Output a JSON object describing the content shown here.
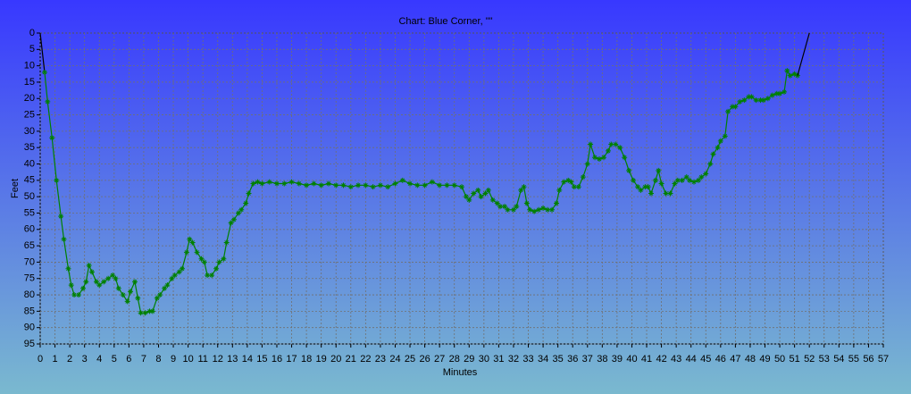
{
  "chart_data": {
    "type": "line",
    "title": "Chart: Blue Corner, \"\"",
    "x_label": "Minutes",
    "y_label": "Feet",
    "xlim": [
      0,
      57
    ],
    "ylim": [
      95,
      0
    ],
    "xticks": [
      0,
      1,
      2,
      3,
      4,
      5,
      6,
      7,
      8,
      9,
      10,
      11,
      12,
      13,
      14,
      15,
      16,
      17,
      18,
      19,
      20,
      21,
      22,
      23,
      24,
      25,
      26,
      27,
      28,
      29,
      30,
      31,
      32,
      33,
      34,
      35,
      36,
      37,
      38,
      39,
      40,
      41,
      42,
      43,
      44,
      45,
      46,
      47,
      48,
      49,
      50,
      51,
      52,
      53,
      54,
      55,
      56,
      57
    ],
    "yticks": [
      0,
      5,
      10,
      15,
      20,
      25,
      30,
      35,
      40,
      45,
      50,
      55,
      60,
      65,
      70,
      75,
      80,
      85,
      90,
      95
    ],
    "grid": true,
    "series": [
      {
        "color": "#000000",
        "markers": false,
        "x": [
          0,
          0.3
        ],
        "values": [
          0,
          12
        ]
      },
      {
        "color": "#008000",
        "markers": true,
        "x": [
          0.3,
          0.5,
          0.8,
          1.1,
          1.4,
          1.6,
          1.9,
          2.1,
          2.3,
          2.6,
          2.9,
          3.1,
          3.3,
          3.5,
          3.8,
          4.0,
          4.3,
          4.6,
          4.9,
          5.1,
          5.3,
          5.6,
          5.9,
          6.1,
          6.4,
          6.6,
          6.8,
          7.1,
          7.4,
          7.6,
          7.9,
          8.1,
          8.4,
          8.6,
          8.9,
          9.1,
          9.4,
          9.6,
          9.9,
          10.1,
          10.3,
          10.6,
          10.9,
          11.1,
          11.3,
          11.6,
          11.9,
          12.1,
          12.4,
          12.6,
          12.9,
          13.1,
          13.4,
          13.6,
          13.9,
          14.1,
          14.4,
          14.7,
          15,
          15.5,
          16,
          16.5,
          17,
          17.5,
          18,
          18.5,
          19,
          19.5,
          20,
          20.5,
          21,
          21.5,
          22,
          22.5,
          23,
          23.5,
          24,
          24.5,
          25,
          25.5,
          26,
          26.5,
          27,
          27.5,
          28,
          28.5,
          28.8,
          29,
          29.3,
          29.6,
          29.8,
          30.1,
          30.3,
          30.6,
          30.9,
          31.1,
          31.4,
          31.6,
          32,
          32.2,
          32.5,
          32.7,
          32.9,
          33.1,
          33.4,
          33.7,
          34,
          34.3,
          34.6,
          34.9,
          35.1,
          35.4,
          35.7,
          35.9,
          36.1,
          36.4,
          36.7,
          37,
          37.2,
          37.5,
          37.8,
          38.1,
          38.4,
          38.6,
          38.9,
          39.2,
          39.5,
          39.8,
          40.1,
          40.4,
          40.6,
          40.9,
          41.1,
          41.3,
          41.6,
          41.8,
          42,
          42.3,
          42.6,
          42.9,
          43.1,
          43.4,
          43.7,
          43.9,
          44.2,
          44.5,
          44.7,
          45,
          45.3,
          45.5,
          45.8,
          46,
          46.3,
          46.5,
          46.8,
          47,
          47.3,
          47.6,
          47.9,
          48.1,
          48.4,
          48.7,
          48.9,
          49.2,
          49.5,
          49.8,
          50,
          50.3,
          50.5,
          50.7,
          51,
          51.2
        ],
        "values": [
          12,
          21,
          32,
          45,
          56,
          63,
          72,
          77,
          80,
          80,
          78,
          76,
          71,
          73,
          76,
          77,
          76,
          75,
          74,
          75,
          78,
          80,
          82,
          79,
          76,
          81,
          85.5,
          85.5,
          85,
          85,
          81,
          80,
          78,
          77,
          75,
          74,
          73,
          72,
          67,
          63,
          64,
          67,
          69,
          70,
          74,
          74,
          72,
          70,
          69,
          64,
          58,
          57,
          55,
          54,
          52,
          49,
          46,
          45.5,
          46,
          45.5,
          46,
          46,
          45.5,
          46,
          46.5,
          46,
          46.5,
          46,
          46.5,
          46.5,
          47,
          46.5,
          46.5,
          47,
          46.5,
          47,
          46,
          45,
          46,
          46.5,
          46.5,
          45.5,
          46.5,
          46.5,
          46.5,
          47,
          50,
          51,
          49,
          48,
          50,
          49,
          48,
          51,
          52,
          53,
          53,
          54,
          54,
          53,
          48,
          47,
          52,
          54,
          54.5,
          54,
          53.5,
          54,
          54,
          52,
          48,
          45.5,
          45,
          45.5,
          47,
          47,
          44,
          40,
          34,
          38,
          38.5,
          38,
          36,
          34,
          34,
          35,
          38,
          42,
          45,
          47,
          48,
          47,
          47,
          49,
          45,
          42,
          46,
          49,
          49,
          46,
          45,
          45,
          44,
          45,
          45.5,
          45,
          44,
          43,
          40,
          37,
          35,
          33,
          31.5,
          24,
          22.5,
          22.5,
          21,
          20.5,
          19.5,
          19.5,
          20.5,
          20.5,
          20.5,
          20,
          19,
          18.5,
          18.5,
          18,
          11.5,
          13,
          12.5,
          13
        ]
      },
      {
        "color": "#000000",
        "markers": false,
        "x": [
          51.2,
          52
        ],
        "values": [
          13,
          0
        ]
      }
    ]
  }
}
